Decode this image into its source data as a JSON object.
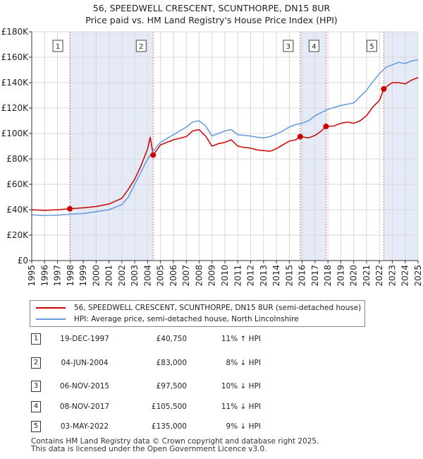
{
  "chart_data": {
    "type": "line",
    "title_line1": "56, SPEEDWELL CRESCENT, SCUNTHORPE, DN15 8UR",
    "title_line2": "Price paid vs. HM Land Registry's House Price Index (HPI)",
    "xlim": [
      1995,
      2025
    ],
    "ylim": [
      0,
      180000
    ],
    "y_ticks": [
      {
        "value": 0,
        "label": "£0"
      },
      {
        "value": 20000,
        "label": "£20K"
      },
      {
        "value": 40000,
        "label": "£40K"
      },
      {
        "value": 60000,
        "label": "£60K"
      },
      {
        "value": 80000,
        "label": "£80K"
      },
      {
        "value": 100000,
        "label": "£100K"
      },
      {
        "value": 120000,
        "label": "£120K"
      },
      {
        "value": 140000,
        "label": "£140K"
      },
      {
        "value": 160000,
        "label": "£160K"
      },
      {
        "value": 180000,
        "label": "£180K"
      }
    ],
    "x_ticks": [
      "1995",
      "1996",
      "1997",
      "1998",
      "1999",
      "2000",
      "2001",
      "2002",
      "2003",
      "2004",
      "2005",
      "2006",
      "2007",
      "2008",
      "2009",
      "2010",
      "2011",
      "2012",
      "2013",
      "2014",
      "2015",
      "2016",
      "2017",
      "2018",
      "2019",
      "2020",
      "2021",
      "2022",
      "2023",
      "2024",
      "2025"
    ],
    "series": [
      {
        "name": "56, SPEEDWELL CRESCENT, SCUNTHORPE, DN15 8UR (semi-detached house)",
        "color": "#cc0000",
        "points": [
          [
            1995.0,
            40000
          ],
          [
            1996.0,
            39500
          ],
          [
            1997.0,
            40000
          ],
          [
            1997.96,
            40750
          ],
          [
            1999.0,
            41500
          ],
          [
            2000.0,
            42500
          ],
          [
            2001.0,
            44500
          ],
          [
            2002.0,
            49000
          ],
          [
            2002.5,
            56000
          ],
          [
            2003.0,
            64000
          ],
          [
            2003.5,
            75000
          ],
          [
            2004.0,
            88000
          ],
          [
            2004.2,
            97000
          ],
          [
            2004.43,
            83000
          ],
          [
            2005.0,
            91000
          ],
          [
            2006.0,
            95000
          ],
          [
            2007.0,
            97500
          ],
          [
            2007.5,
            102000
          ],
          [
            2008.0,
            103000
          ],
          [
            2008.5,
            98000
          ],
          [
            2009.0,
            90000
          ],
          [
            2009.5,
            92000
          ],
          [
            2010.0,
            93000
          ],
          [
            2010.5,
            95000
          ],
          [
            2011.0,
            90000
          ],
          [
            2011.5,
            89000
          ],
          [
            2012.0,
            88500
          ],
          [
            2012.5,
            87000
          ],
          [
            2013.0,
            86500
          ],
          [
            2013.5,
            86000
          ],
          [
            2014.0,
            88000
          ],
          [
            2014.5,
            91000
          ],
          [
            2015.0,
            94000
          ],
          [
            2015.5,
            95000
          ],
          [
            2015.85,
            97500
          ],
          [
            2016.5,
            96500
          ],
          [
            2017.0,
            98500
          ],
          [
            2017.5,
            102000
          ],
          [
            2017.85,
            105500
          ],
          [
            2018.5,
            106000
          ],
          [
            2019.0,
            108000
          ],
          [
            2019.5,
            109000
          ],
          [
            2020.0,
            108000
          ],
          [
            2020.5,
            110000
          ],
          [
            2021.0,
            114000
          ],
          [
            2021.5,
            121000
          ],
          [
            2022.0,
            126000
          ],
          [
            2022.34,
            135000
          ],
          [
            2022.7,
            138000
          ],
          [
            2023.0,
            140000
          ],
          [
            2023.5,
            140000
          ],
          [
            2024.0,
            139000
          ],
          [
            2024.5,
            142000
          ],
          [
            2025.0,
            144000
          ]
        ]
      },
      {
        "name": "HPI: Average price, semi-detached house, North Lincolnshire",
        "color": "#6699dd",
        "points": [
          [
            1995.0,
            36000
          ],
          [
            1996.0,
            35500
          ],
          [
            1997.0,
            35800
          ],
          [
            1998.0,
            36500
          ],
          [
            1999.0,
            37000
          ],
          [
            2000.0,
            38500
          ],
          [
            2001.0,
            40000
          ],
          [
            2002.0,
            44000
          ],
          [
            2002.5,
            50000
          ],
          [
            2003.0,
            60000
          ],
          [
            2003.5,
            70000
          ],
          [
            2004.0,
            80000
          ],
          [
            2004.5,
            87000
          ],
          [
            2005.0,
            93000
          ],
          [
            2006.0,
            99000
          ],
          [
            2007.0,
            105000
          ],
          [
            2007.5,
            109000
          ],
          [
            2008.0,
            110000
          ],
          [
            2008.5,
            106000
          ],
          [
            2009.0,
            98000
          ],
          [
            2009.5,
            100000
          ],
          [
            2010.0,
            102000
          ],
          [
            2010.5,
            103000
          ],
          [
            2011.0,
            99000
          ],
          [
            2011.5,
            98500
          ],
          [
            2012.0,
            98000
          ],
          [
            2012.5,
            97000
          ],
          [
            2013.0,
            96500
          ],
          [
            2013.5,
            97500
          ],
          [
            2014.0,
            99500
          ],
          [
            2014.5,
            102000
          ],
          [
            2015.0,
            105000
          ],
          [
            2015.5,
            107000
          ],
          [
            2016.0,
            108000
          ],
          [
            2016.5,
            110000
          ],
          [
            2017.0,
            114000
          ],
          [
            2017.5,
            116500
          ],
          [
            2018.0,
            119000
          ],
          [
            2018.5,
            120500
          ],
          [
            2019.0,
            122000
          ],
          [
            2019.5,
            123000
          ],
          [
            2020.0,
            124000
          ],
          [
            2020.5,
            129000
          ],
          [
            2021.0,
            134000
          ],
          [
            2021.5,
            141000
          ],
          [
            2022.0,
            147000
          ],
          [
            2022.5,
            152000
          ],
          [
            2023.0,
            154000
          ],
          [
            2023.5,
            156000
          ],
          [
            2024.0,
            155000
          ],
          [
            2024.5,
            157000
          ],
          [
            2025.0,
            158000
          ]
        ]
      }
    ],
    "sales": [
      {
        "id": "1",
        "x": 1997.96,
        "price_value": 40750
      },
      {
        "id": "2",
        "x": 2004.43,
        "price_value": 83000
      },
      {
        "id": "3",
        "x": 2015.85,
        "price_value": 97500
      },
      {
        "id": "4",
        "x": 2017.85,
        "price_value": 105500
      },
      {
        "id": "5",
        "x": 2022.34,
        "price_value": 135000
      }
    ],
    "shaded_spans": [
      [
        1997.96,
        2004.43
      ],
      [
        2015.85,
        2017.85
      ],
      [
        2022.34,
        2025.0
      ]
    ],
    "grid": true
  },
  "legend": {
    "property_label": "56, SPEEDWELL CRESCENT, SCUNTHORPE, DN15 8UR (semi-detached house)",
    "hpi_label": "HPI: Average price, semi-detached house, North Lincolnshire",
    "property_color": "#cc0000",
    "hpi_color": "#6699dd"
  },
  "sales_table": [
    {
      "id": "1",
      "date": "19-DEC-1997",
      "price": "£40,750",
      "hpi": "11% ↑ HPI"
    },
    {
      "id": "2",
      "date": "04-JUN-2004",
      "price": "£83,000",
      "hpi": "8% ↓ HPI"
    },
    {
      "id": "3",
      "date": "06-NOV-2015",
      "price": "£97,500",
      "hpi": "10% ↓ HPI"
    },
    {
      "id": "4",
      "date": "08-NOV-2017",
      "price": "£105,500",
      "hpi": "11% ↓ HPI"
    },
    {
      "id": "5",
      "date": "03-MAY-2022",
      "price": "£135,000",
      "hpi": "9% ↓ HPI"
    }
  ],
  "footer": {
    "line1": "Contains HM Land Registry data © Crown copyright and database right 2025.",
    "line2": "This data is licensed under the Open Government Licence v3.0."
  }
}
